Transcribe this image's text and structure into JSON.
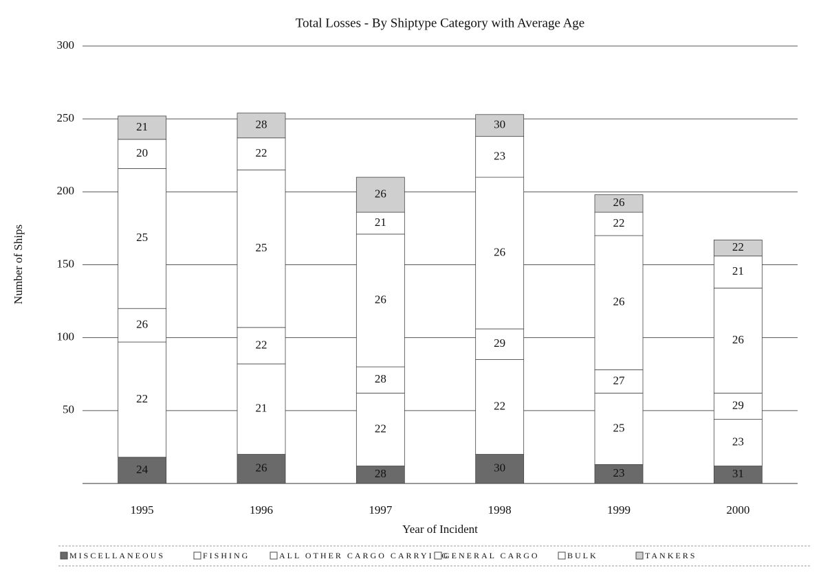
{
  "chart_data": {
    "type": "stacked_bar",
    "title": "Total Losses - By Shiptype Category with Average Age",
    "x_label": "Year of Incident",
    "y_label": "Number of Ships",
    "categories": [
      "1995",
      "1996",
      "1997",
      "1998",
      "1999",
      "2000"
    ],
    "ylim": [
      0,
      300
    ],
    "yticks": [
      50,
      100,
      150,
      200,
      250,
      300
    ],
    "grid": true,
    "series": [
      {
        "name": "MISCELLANEOUS",
        "color": "#6a6a6a",
        "values": [
          18,
          20,
          12,
          20,
          13,
          12
        ],
        "ages": [
          24,
          26,
          28,
          30,
          23,
          31
        ]
      },
      {
        "name": "FISHING",
        "color": "#ffffff",
        "values": [
          79,
          62,
          50,
          65,
          49,
          32
        ],
        "ages": [
          22,
          21,
          22,
          22,
          25,
          23
        ]
      },
      {
        "name": "ALL OTHER CARGO CARRYING",
        "color": "#ffffff",
        "values": [
          23,
          25,
          18,
          21,
          16,
          18
        ],
        "ages": [
          26,
          22,
          28,
          29,
          27,
          29
        ]
      },
      {
        "name": "GENERAL CARGO",
        "color": "#ffffff",
        "values": [
          96,
          108,
          91,
          104,
          92,
          72
        ],
        "ages": [
          25,
          25,
          26,
          26,
          26,
          26
        ]
      },
      {
        "name": "BULK",
        "color": "#ffffff",
        "values": [
          20,
          22,
          15,
          28,
          16,
          22
        ],
        "ages": [
          20,
          22,
          21,
          23,
          22,
          21
        ]
      },
      {
        "name": "TANKERS",
        "color": "#cfcfcf",
        "values": [
          16,
          17,
          24,
          15,
          12,
          11
        ],
        "ages": [
          21,
          28,
          26,
          30,
          26,
          22
        ]
      }
    ]
  }
}
